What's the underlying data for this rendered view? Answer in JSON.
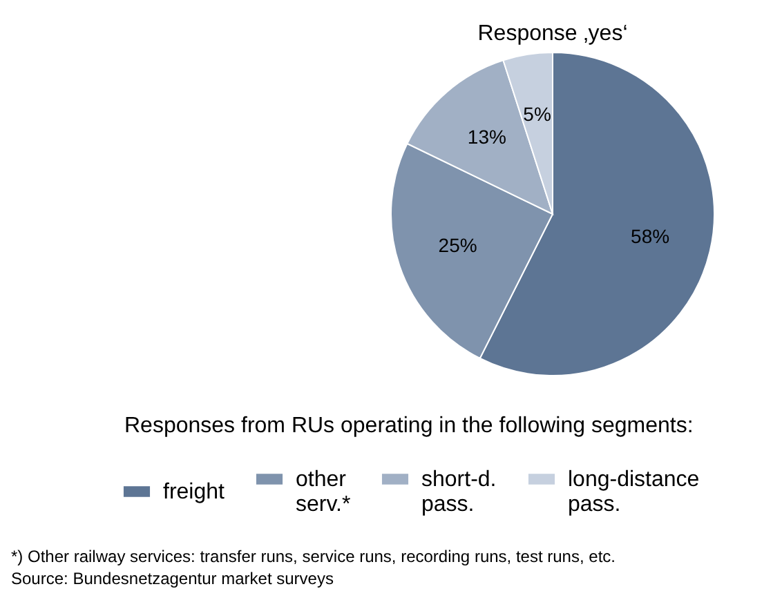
{
  "chart_data": {
    "type": "pie",
    "title": "Response ‚yes‘",
    "categories": [
      "freight",
      "other serv.*",
      "short-d. pass.",
      "long-distance pass."
    ],
    "values": [
      58,
      25,
      13,
      5
    ],
    "value_labels": [
      "58%",
      "25%",
      "13%",
      "5%"
    ],
    "colors": [
      "#5d7594",
      "#7f93ad",
      "#a1b0c5",
      "#c6d0df"
    ],
    "legend": "bottom",
    "legend_title": "Responses from RUs operating in the following segments:",
    "annotations": [
      "*) Other railway services: transfer runs, service runs, recording runs, test runs, etc.",
      "Source: Bundesnetzagentur market surveys"
    ]
  }
}
